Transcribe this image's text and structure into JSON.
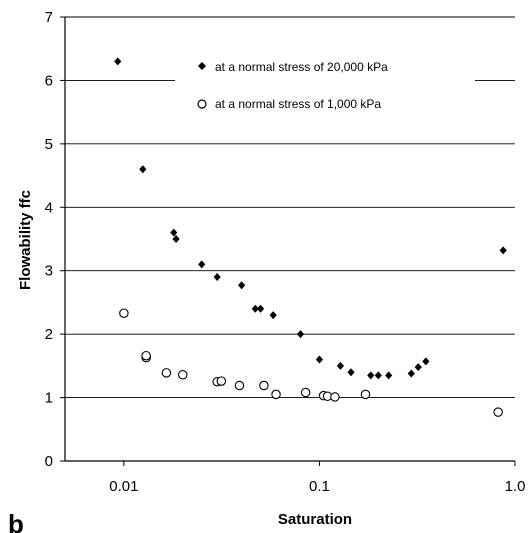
{
  "panel_label": "b",
  "chart_data": {
    "type": "scatter",
    "xlabel": "Saturation",
    "ylabel": "Flowability  ffc",
    "xscale": "log",
    "xlim": [
      0.005,
      1.0
    ],
    "ylim": [
      0,
      7
    ],
    "x_ticks": [
      0.01,
      0.1,
      1.0
    ],
    "x_tick_labels": [
      "0.01",
      "0.1",
      "1.0"
    ],
    "y_ticks": [
      0,
      1,
      2,
      3,
      4,
      5,
      6,
      7
    ],
    "y_tick_labels": [
      "0",
      "1",
      "2",
      "3",
      "4",
      "5",
      "6",
      "7"
    ],
    "grid": "horizontal",
    "legend_position": "top-right",
    "series": [
      {
        "name": "at a normal stress of 20,000 kPa",
        "marker": "diamond-filled",
        "color": "#000000",
        "x": [
          0.0093,
          0.0125,
          0.018,
          0.0185,
          0.025,
          0.03,
          0.04,
          0.047,
          0.05,
          0.058,
          0.08,
          0.1,
          0.128,
          0.145,
          0.183,
          0.2,
          0.226,
          0.295,
          0.32,
          0.35,
          0.87
        ],
        "y": [
          6.3,
          4.6,
          3.6,
          3.5,
          3.1,
          2.9,
          2.77,
          2.4,
          2.4,
          2.3,
          2.0,
          1.6,
          1.5,
          1.4,
          1.35,
          1.35,
          1.35,
          1.38,
          1.48,
          1.57,
          3.32
        ]
      },
      {
        "name": "at a normal stress of 1,000 kPa",
        "marker": "circle-open",
        "color": "#000000",
        "x": [
          0.01,
          0.013,
          0.013,
          0.0165,
          0.02,
          0.03,
          0.0315,
          0.039,
          0.052,
          0.06,
          0.085,
          0.105,
          0.11,
          0.12,
          0.172,
          0.82
        ],
        "y": [
          2.33,
          1.63,
          1.66,
          1.39,
          1.36,
          1.25,
          1.26,
          1.19,
          1.19,
          1.05,
          1.08,
          1.03,
          1.02,
          1.01,
          1.05,
          0.77
        ]
      }
    ]
  }
}
